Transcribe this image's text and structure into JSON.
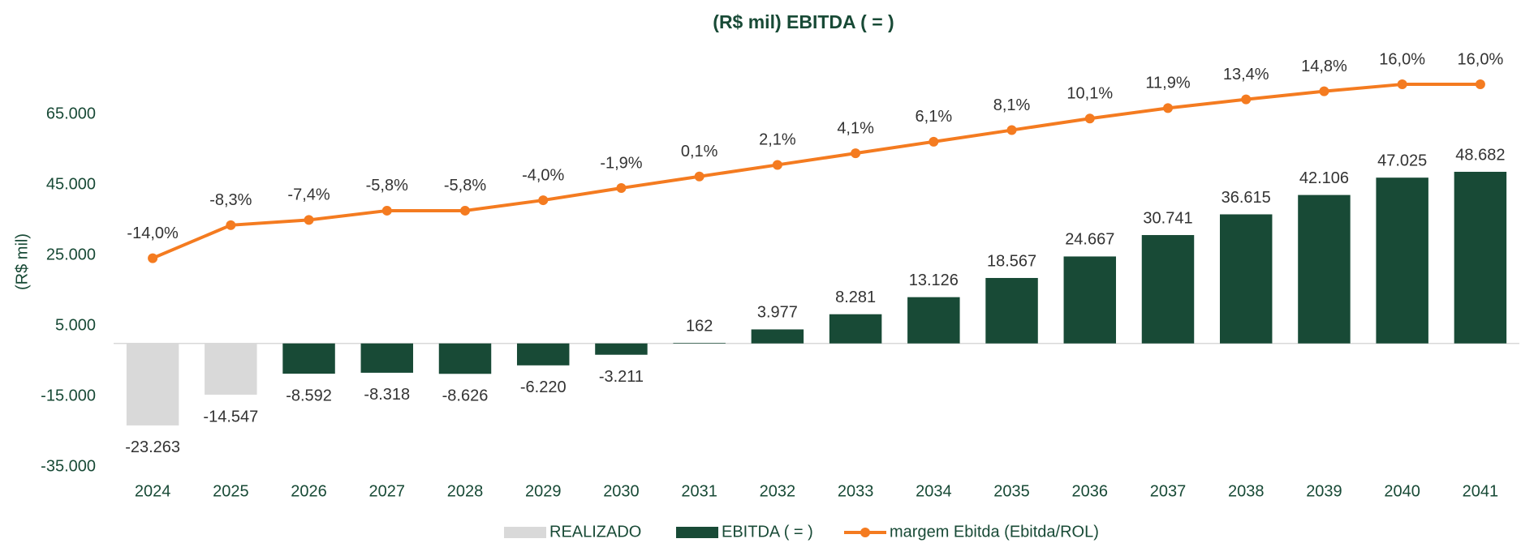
{
  "chart_data": {
    "type": "bar_line",
    "title": "(R$ mil) EBITDA ( = )",
    "y_label": "(R$ mil)",
    "categories": [
      "2024",
      "2025",
      "2026",
      "2027",
      "2028",
      "2029",
      "2030",
      "2031",
      "2032",
      "2033",
      "2034",
      "2035",
      "2036",
      "2037",
      "2038",
      "2039",
      "2040",
      "2041"
    ],
    "series": [
      {
        "name": "REALIZADO",
        "type": "bar",
        "color": "#d9d9d9",
        "values": [
          -23263,
          -14547,
          null,
          null,
          null,
          null,
          null,
          null,
          null,
          null,
          null,
          null,
          null,
          null,
          null,
          null,
          null,
          null
        ],
        "value_labels": [
          "-23.263",
          "-14.547",
          null,
          null,
          null,
          null,
          null,
          null,
          null,
          null,
          null,
          null,
          null,
          null,
          null,
          null,
          null,
          null
        ]
      },
      {
        "name": "EBITDA ( = )",
        "type": "bar",
        "color": "#184a36",
        "values": [
          null,
          null,
          -8592,
          -8318,
          -8626,
          -6220,
          -3211,
          162,
          3977,
          8281,
          13126,
          18567,
          24667,
          30741,
          36615,
          42106,
          47025,
          48682
        ],
        "value_labels": [
          null,
          null,
          "-8.592",
          "-8.318",
          "-8.626",
          "-6.220",
          "-3.211",
          "162",
          "3.977",
          "8.281",
          "13.126",
          "18.567",
          "24.667",
          "30.741",
          "36.615",
          "42.106",
          "47.025",
          "48.682"
        ]
      },
      {
        "name": "margem Ebitda (Ebitda/ROL)",
        "type": "line",
        "axis": "y2",
        "color": "#f47b20",
        "values": [
          -14.0,
          -8.3,
          -7.4,
          -5.8,
          -5.8,
          -4.0,
          -1.9,
          0.1,
          2.1,
          4.1,
          6.1,
          8.1,
          10.1,
          11.9,
          13.4,
          14.8,
          16.0,
          16.0
        ],
        "value_labels": [
          "-14,0%",
          "-8,3%",
          "-7,4%",
          "-5,8%",
          "-5,8%",
          "-4,0%",
          "-1,9%",
          "0,1%",
          "2,1%",
          "4,1%",
          "6,1%",
          "8,1%",
          "10,1%",
          "11,9%",
          "13,4%",
          "14,8%",
          "16,0%",
          "16,0%"
        ]
      }
    ],
    "ylim": [
      -35000,
      85000
    ],
    "yticks": [
      {
        "value": -35000,
        "label": "-35.000"
      },
      {
        "value": -15000,
        "label": "-15.000"
      },
      {
        "value": 5000,
        "label": "5.000"
      },
      {
        "value": 25000,
        "label": "25.000"
      },
      {
        "value": 45000,
        "label": "45.000"
      },
      {
        "value": 65000,
        "label": "65.000"
      }
    ],
    "y2lim": [
      -50,
      23
    ],
    "legend": "bottom"
  }
}
